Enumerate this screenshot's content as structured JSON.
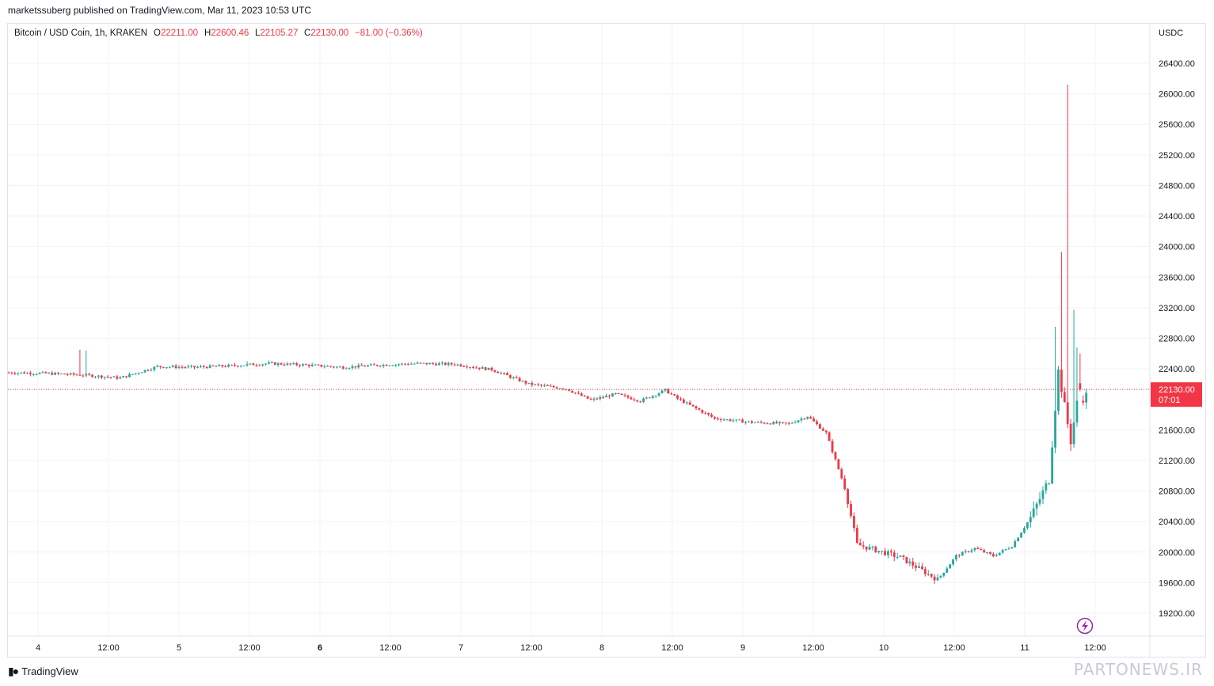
{
  "publisher_line": "marketssuberg published on TradingView.com, Mar 11, 2023 10:53 UTC",
  "legend": {
    "symbol": "Bitcoin / USD Coin, 1h, KRAKEN",
    "o_label": "O",
    "o_value": "22211.00",
    "h_label": "H",
    "h_value": "22600.46",
    "l_label": "L",
    "l_value": "22105.27",
    "c_label": "C",
    "c_value": "22130.00",
    "change": "−81.00 (−0.36%)"
  },
  "footer": {
    "brand": "TradingView",
    "watermark": "PARTONEWS.IR"
  },
  "colors": {
    "up": "#26a69a",
    "down": "#f23645",
    "grid": "#f0f3fa",
    "text": "#131722",
    "accent": "#9c27b0"
  },
  "chart_data": {
    "type": "candlestick",
    "currency": "USDC",
    "yaxis": {
      "ticks": [
        "26400.00",
        "26000.00",
        "25600.00",
        "25200.00",
        "24800.00",
        "24400.00",
        "24000.00",
        "23600.00",
        "23200.00",
        "22800.00",
        "22400.00",
        "21600.00",
        "21200.00",
        "20800.00",
        "20400.00",
        "20000.00",
        "19600.00",
        "19200.00"
      ],
      "range": [
        19000,
        26800
      ]
    },
    "xaxis": {
      "ticks": [
        {
          "label": "4",
          "bold": false
        },
        {
          "label": "12:00",
          "bold": false
        },
        {
          "label": "5",
          "bold": false
        },
        {
          "label": "12:00",
          "bold": false
        },
        {
          "label": "6",
          "bold": true
        },
        {
          "label": "12:00",
          "bold": false
        },
        {
          "label": "7",
          "bold": false
        },
        {
          "label": "12:00",
          "bold": false
        },
        {
          "label": "8",
          "bold": false
        },
        {
          "label": "12:00",
          "bold": false
        },
        {
          "label": "9",
          "bold": false
        },
        {
          "label": "12:00",
          "bold": false
        },
        {
          "label": "10",
          "bold": false
        },
        {
          "label": "12:00",
          "bold": false
        },
        {
          "label": "11",
          "bold": false
        },
        {
          "label": "12:00",
          "bold": false
        }
      ]
    },
    "last_price": {
      "price": 22130,
      "label": "22130.00",
      "countdown": "07:01"
    },
    "anchors": [
      [
        0,
        22350
      ],
      [
        12,
        22340
      ],
      [
        24,
        22320
      ],
      [
        36,
        22280
      ],
      [
        48,
        22430
      ],
      [
        60,
        22420
      ],
      [
        72,
        22440
      ],
      [
        84,
        22470
      ],
      [
        96,
        22450
      ],
      [
        108,
        22420
      ],
      [
        120,
        22450
      ],
      [
        132,
        22470
      ],
      [
        144,
        22460
      ],
      [
        156,
        22390
      ],
      [
        168,
        22200
      ],
      [
        180,
        22140
      ],
      [
        188,
        21990
      ],
      [
        196,
        22070
      ],
      [
        204,
        21980
      ],
      [
        212,
        22120
      ],
      [
        216,
        22010
      ],
      [
        228,
        21750
      ],
      [
        240,
        21700
      ],
      [
        252,
        21680
      ],
      [
        258,
        21780
      ],
      [
        264,
        21560
      ],
      [
        270,
        20850
      ],
      [
        274,
        20100
      ],
      [
        288,
        19930
      ],
      [
        300,
        19640
      ],
      [
        306,
        19950
      ],
      [
        312,
        20050
      ],
      [
        318,
        19950
      ],
      [
        324,
        20080
      ],
      [
        330,
        20450
      ],
      [
        336,
        20950
      ],
      [
        339,
        22370
      ],
      [
        343,
        21450
      ],
      [
        345,
        21950
      ],
      [
        348,
        22050
      ]
    ],
    "spikes": [
      {
        "i": 23,
        "high": 22650
      },
      {
        "i": 25,
        "high": 22640
      },
      {
        "i": 77,
        "high": 22500
      },
      {
        "i": 226,
        "high": 21770
      },
      {
        "i": 338,
        "high": 22950
      },
      {
        "i": 340,
        "high": 23930
      },
      {
        "i": 342,
        "high": 26120
      },
      {
        "i": 344,
        "high": 23170
      },
      {
        "i": 345,
        "high": 22680
      },
      {
        "i": 346,
        "high": 22600
      }
    ],
    "last_candle": {
      "i": 346,
      "open": 22211.0,
      "high": 22600.46,
      "low": 22105.27,
      "close": 22130.0
    }
  }
}
